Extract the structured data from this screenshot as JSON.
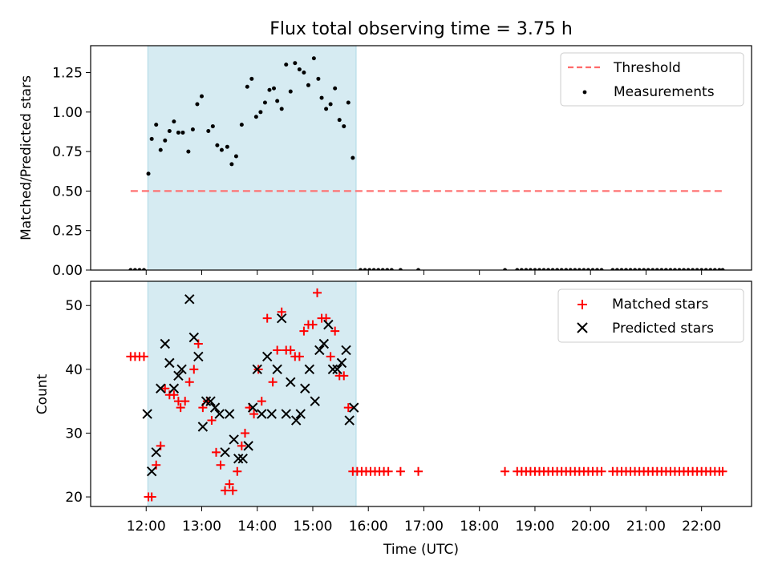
{
  "chart_data": [
    {
      "type": "scatter",
      "title": "Flux total observing time = 3.75 h",
      "xlabel": "",
      "ylabel": "Matched/Predicted stars",
      "ylim": [
        0,
        1.42
      ],
      "yticks": [
        0.0,
        0.25,
        0.5,
        0.75,
        1.0,
        1.25
      ],
      "ytick_labels": [
        "0.00",
        "0.25",
        "0.50",
        "0.75",
        "1.00",
        "1.25"
      ],
      "x_unit": "hours UTC",
      "xlim": [
        11.0,
        22.9
      ],
      "shaded_interval": [
        12.03,
        15.78
      ],
      "legend_position": "upper right",
      "series": [
        {
          "name": "Threshold",
          "style": "dashed-line",
          "color": "#ff6b6b",
          "x": [
            11.72,
            22.37
          ],
          "y": [
            0.5,
            0.5
          ]
        },
        {
          "name": "Measurements",
          "style": "dot",
          "color": "#000000",
          "points": [
            [
              11.72,
              0
            ],
            [
              11.8,
              0
            ],
            [
              11.88,
              0
            ],
            [
              11.96,
              0
            ],
            [
              12.04,
              0.61
            ],
            [
              12.1,
              0.83
            ],
            [
              12.18,
              0.92
            ],
            [
              12.26,
              0.76
            ],
            [
              12.34,
              0.82
            ],
            [
              12.42,
              0.88
            ],
            [
              12.5,
              0.94
            ],
            [
              12.58,
              0.87
            ],
            [
              12.66,
              0.87
            ],
            [
              12.76,
              0.75
            ],
            [
              12.84,
              0.89
            ],
            [
              12.92,
              1.05
            ],
            [
              13.0,
              1.1
            ],
            [
              13.12,
              0.88
            ],
            [
              13.2,
              0.91
            ],
            [
              13.28,
              0.79
            ],
            [
              13.36,
              0.76
            ],
            [
              13.46,
              0.78
            ],
            [
              13.54,
              0.67
            ],
            [
              13.62,
              0.72
            ],
            [
              13.72,
              0.92
            ],
            [
              13.82,
              1.16
            ],
            [
              13.9,
              1.21
            ],
            [
              13.98,
              0.97
            ],
            [
              14.06,
              1.0
            ],
            [
              14.14,
              1.06
            ],
            [
              14.22,
              1.14
            ],
            [
              14.3,
              1.15
            ],
            [
              14.36,
              1.07
            ],
            [
              14.44,
              1.02
            ],
            [
              14.52,
              1.3
            ],
            [
              14.6,
              1.13
            ],
            [
              14.68,
              1.31
            ],
            [
              14.76,
              1.27
            ],
            [
              14.84,
              1.25
            ],
            [
              14.92,
              1.17
            ],
            [
              15.02,
              1.34
            ],
            [
              15.1,
              1.21
            ],
            [
              15.16,
              1.09
            ],
            [
              15.24,
              1.02
            ],
            [
              15.32,
              1.05
            ],
            [
              15.4,
              1.15
            ],
            [
              15.48,
              0.95
            ],
            [
              15.56,
              0.91
            ],
            [
              15.64,
              1.06
            ],
            [
              15.72,
              0.71
            ],
            [
              15.86,
              0
            ],
            [
              15.94,
              0
            ],
            [
              16.02,
              0
            ],
            [
              16.1,
              0
            ],
            [
              16.18,
              0
            ],
            [
              16.26,
              0
            ],
            [
              16.34,
              0
            ],
            [
              16.42,
              0
            ],
            [
              16.58,
              0
            ],
            [
              16.9,
              0
            ],
            [
              18.46,
              0
            ],
            [
              18.68,
              0
            ],
            [
              18.76,
              0
            ],
            [
              18.84,
              0
            ],
            [
              18.92,
              0
            ],
            [
              19.0,
              0
            ],
            [
              19.08,
              0
            ],
            [
              19.16,
              0
            ],
            [
              19.24,
              0
            ],
            [
              19.32,
              0
            ],
            [
              19.4,
              0
            ],
            [
              19.48,
              0
            ],
            [
              19.56,
              0
            ],
            [
              19.64,
              0
            ],
            [
              19.72,
              0
            ],
            [
              19.8,
              0
            ],
            [
              19.88,
              0
            ],
            [
              19.96,
              0
            ],
            [
              20.04,
              0
            ],
            [
              20.12,
              0
            ],
            [
              20.2,
              0
            ],
            [
              20.4,
              0
            ],
            [
              20.48,
              0
            ],
            [
              20.56,
              0
            ],
            [
              20.64,
              0
            ],
            [
              20.72,
              0
            ],
            [
              20.8,
              0
            ],
            [
              20.88,
              0
            ],
            [
              20.96,
              0
            ],
            [
              21.04,
              0
            ],
            [
              21.12,
              0
            ],
            [
              21.2,
              0
            ],
            [
              21.28,
              0
            ],
            [
              21.36,
              0
            ],
            [
              21.44,
              0
            ],
            [
              21.52,
              0
            ],
            [
              21.6,
              0
            ],
            [
              21.68,
              0
            ],
            [
              21.76,
              0
            ],
            [
              21.84,
              0
            ],
            [
              21.92,
              0
            ],
            [
              22.0,
              0
            ],
            [
              22.08,
              0
            ],
            [
              22.16,
              0
            ],
            [
              22.24,
              0
            ],
            [
              22.32,
              0
            ],
            [
              22.38,
              0
            ]
          ]
        }
      ]
    },
    {
      "type": "scatter",
      "title": "",
      "xlabel": "Time (UTC)",
      "ylabel": "Count",
      "ylim": [
        18.5,
        53.8
      ],
      "yticks": [
        20,
        30,
        40,
        50
      ],
      "ytick_labels": [
        "20",
        "30",
        "40",
        "50"
      ],
      "x_unit": "hours UTC",
      "xlim": [
        11.0,
        22.9
      ],
      "xticks": [
        12,
        13,
        14,
        15,
        16,
        17,
        18,
        19,
        20,
        21,
        22
      ],
      "xtick_labels": [
        "12:00",
        "13:00",
        "14:00",
        "15:00",
        "16:00",
        "17:00",
        "18:00",
        "19:00",
        "20:00",
        "21:00",
        "22:00"
      ],
      "shaded_interval": [
        12.03,
        15.78
      ],
      "legend_position": "upper right",
      "series": [
        {
          "name": "Matched stars",
          "style": "plus",
          "color": "#ff0000",
          "points": [
            [
              11.72,
              42
            ],
            [
              11.8,
              42
            ],
            [
              11.88,
              42
            ],
            [
              11.96,
              42
            ],
            [
              12.04,
              20
            ],
            [
              12.1,
              20
            ],
            [
              12.18,
              25
            ],
            [
              12.26,
              28
            ],
            [
              12.34,
              37
            ],
            [
              12.42,
              36
            ],
            [
              12.5,
              36
            ],
            [
              12.58,
              35
            ],
            [
              12.62,
              34
            ],
            [
              12.7,
              35
            ],
            [
              12.78,
              38
            ],
            [
              12.86,
              40
            ],
            [
              12.94,
              44
            ],
            [
              13.02,
              34
            ],
            [
              13.1,
              35
            ],
            [
              13.18,
              32
            ],
            [
              13.26,
              27
            ],
            [
              13.34,
              25
            ],
            [
              13.42,
              21
            ],
            [
              13.5,
              22
            ],
            [
              13.56,
              21
            ],
            [
              13.64,
              24
            ],
            [
              13.72,
              28
            ],
            [
              13.78,
              30
            ],
            [
              13.86,
              34
            ],
            [
              13.94,
              33
            ],
            [
              14.02,
              40
            ],
            [
              14.08,
              35
            ],
            [
              14.18,
              48
            ],
            [
              14.28,
              38
            ],
            [
              14.36,
              43
            ],
            [
              14.44,
              49
            ],
            [
              14.52,
              43
            ],
            [
              14.6,
              43
            ],
            [
              14.68,
              42
            ],
            [
              14.76,
              42
            ],
            [
              14.84,
              46
            ],
            [
              14.92,
              47
            ],
            [
              15.0,
              47
            ],
            [
              15.08,
              52
            ],
            [
              15.16,
              48
            ],
            [
              15.24,
              48
            ],
            [
              15.32,
              42
            ],
            [
              15.4,
              46
            ],
            [
              15.48,
              39
            ],
            [
              15.56,
              39
            ],
            [
              15.64,
              34
            ],
            [
              15.72,
              24
            ],
            [
              15.8,
              24
            ],
            [
              15.88,
              24
            ],
            [
              15.96,
              24
            ],
            [
              16.04,
              24
            ],
            [
              16.12,
              24
            ],
            [
              16.2,
              24
            ],
            [
              16.28,
              24
            ],
            [
              16.36,
              24
            ],
            [
              16.58,
              24
            ],
            [
              16.9,
              24
            ],
            [
              18.46,
              24
            ],
            [
              18.68,
              24
            ],
            [
              18.76,
              24
            ],
            [
              18.84,
              24
            ],
            [
              18.92,
              24
            ],
            [
              19.0,
              24
            ],
            [
              19.08,
              24
            ],
            [
              19.16,
              24
            ],
            [
              19.24,
              24
            ],
            [
              19.32,
              24
            ],
            [
              19.4,
              24
            ],
            [
              19.48,
              24
            ],
            [
              19.56,
              24
            ],
            [
              19.64,
              24
            ],
            [
              19.72,
              24
            ],
            [
              19.8,
              24
            ],
            [
              19.88,
              24
            ],
            [
              19.96,
              24
            ],
            [
              20.04,
              24
            ],
            [
              20.12,
              24
            ],
            [
              20.2,
              24
            ],
            [
              20.4,
              24
            ],
            [
              20.48,
              24
            ],
            [
              20.56,
              24
            ],
            [
              20.64,
              24
            ],
            [
              20.72,
              24
            ],
            [
              20.8,
              24
            ],
            [
              20.88,
              24
            ],
            [
              20.96,
              24
            ],
            [
              21.04,
              24
            ],
            [
              21.12,
              24
            ],
            [
              21.2,
              24
            ],
            [
              21.28,
              24
            ],
            [
              21.36,
              24
            ],
            [
              21.44,
              24
            ],
            [
              21.52,
              24
            ],
            [
              21.6,
              24
            ],
            [
              21.68,
              24
            ],
            [
              21.76,
              24
            ],
            [
              21.84,
              24
            ],
            [
              21.92,
              24
            ],
            [
              22.0,
              24
            ],
            [
              22.08,
              24
            ],
            [
              22.16,
              24
            ],
            [
              22.24,
              24
            ],
            [
              22.32,
              24
            ],
            [
              22.38,
              24
            ]
          ]
        },
        {
          "name": "Predicted stars",
          "style": "x",
          "color": "#000000",
          "points": [
            [
              12.02,
              33
            ],
            [
              12.1,
              24
            ],
            [
              12.18,
              27
            ],
            [
              12.26,
              37
            ],
            [
              12.34,
              44
            ],
            [
              12.42,
              41
            ],
            [
              12.5,
              37
            ],
            [
              12.58,
              39
            ],
            [
              12.64,
              40
            ],
            [
              12.78,
              51
            ],
            [
              12.86,
              45
            ],
            [
              12.94,
              42
            ],
            [
              13.02,
              31
            ],
            [
              13.08,
              35
            ],
            [
              13.16,
              35
            ],
            [
              13.24,
              34
            ],
            [
              13.32,
              33
            ],
            [
              13.42,
              27
            ],
            [
              13.5,
              33
            ],
            [
              13.58,
              29
            ],
            [
              13.66,
              26
            ],
            [
              13.74,
              26
            ],
            [
              13.84,
              28
            ],
            [
              13.92,
              34
            ],
            [
              14.0,
              40
            ],
            [
              14.08,
              33
            ],
            [
              14.18,
              42
            ],
            [
              14.26,
              33
            ],
            [
              14.36,
              40
            ],
            [
              14.44,
              48
            ],
            [
              14.52,
              33
            ],
            [
              14.6,
              38
            ],
            [
              14.7,
              32
            ],
            [
              14.78,
              33
            ],
            [
              14.86,
              37
            ],
            [
              14.94,
              40
            ],
            [
              15.04,
              35
            ],
            [
              15.12,
              43
            ],
            [
              15.2,
              44
            ],
            [
              15.28,
              47
            ],
            [
              15.36,
              40
            ],
            [
              15.44,
              40
            ],
            [
              15.52,
              41
            ],
            [
              15.6,
              43
            ],
            [
              15.66,
              32
            ],
            [
              15.74,
              34
            ]
          ]
        }
      ]
    }
  ]
}
